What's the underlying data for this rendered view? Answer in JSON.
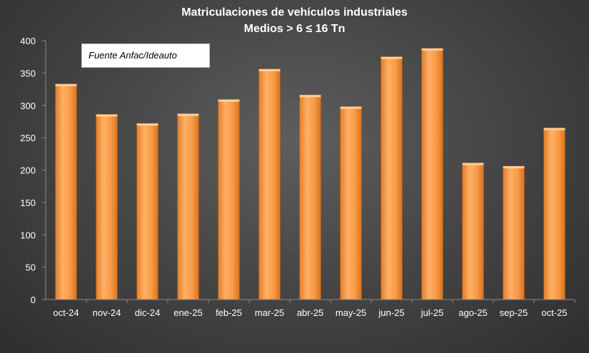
{
  "chart_data": {
    "type": "bar",
    "title": "Matriculaciones de vehículos industriales",
    "subtitle": "Medios > 6 ≤ 16 Tn",
    "annotation": "Fuente Anfac/Ideauto",
    "categories": [
      "oct-24",
      "nov-24",
      "dic-24",
      "ene-25",
      "feb-25",
      "mar-25",
      "abr-25",
      "may-25",
      "jun-25",
      "jul-25",
      "ago-25",
      "sep-25",
      "oct-25"
    ],
    "values": [
      333,
      286,
      272,
      287,
      309,
      356,
      316,
      298,
      375,
      388,
      211,
      206,
      265
    ],
    "ylim": [
      0,
      400
    ],
    "yticks": [
      0,
      50,
      100,
      150,
      200,
      250,
      300,
      350,
      400
    ],
    "bar_color": "#f79a46",
    "grid": false,
    "legend": false
  }
}
